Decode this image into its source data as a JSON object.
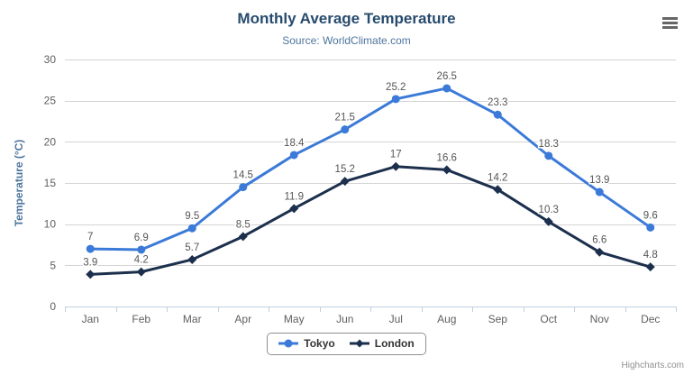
{
  "chart": {
    "title": "Monthly Average Temperature",
    "subtitle": "Source: WorldClimate.com",
    "credits": "Highcharts.com",
    "menu_icon": "hamburger-menu-icon"
  },
  "chart_data": {
    "type": "line",
    "title": "Monthly Average Temperature",
    "subtitle": "Source: WorldClimate.com",
    "categories": [
      "Jan",
      "Feb",
      "Mar",
      "Apr",
      "May",
      "Jun",
      "Jul",
      "Aug",
      "Sep",
      "Oct",
      "Nov",
      "Dec"
    ],
    "series": [
      {
        "name": "Tokyo",
        "color": "#3b7ad8",
        "marker": "circle",
        "values": [
          7,
          6.9,
          9.5,
          14.5,
          18.4,
          21.5,
          25.2,
          26.5,
          23.3,
          18.3,
          13.9,
          9.6
        ]
      },
      {
        "name": "London",
        "color": "#1c2f4d",
        "marker": "diamond",
        "values": [
          3.9,
          4.2,
          5.7,
          8.5,
          11.9,
          15.2,
          17,
          16.6,
          14.2,
          10.3,
          6.6,
          4.8
        ]
      }
    ],
    "xlabel": "",
    "ylabel": "Temperature (°C)",
    "ylim": [
      0,
      30
    ],
    "ytick_step": 5,
    "grid": true,
    "legend_position": "bottom",
    "data_labels": true
  },
  "colors": {
    "title": "#274b6d",
    "subtitle": "#4d759e",
    "axis_title": "#4d759e",
    "tick_label": "#606060",
    "grid_line": "#d4d4d4",
    "axis_line": "#c0d0e0",
    "data_label": "#555555",
    "legend_text": "#333333",
    "legend_border": "#909090",
    "credits": "#909090",
    "menu_icon": "#666666",
    "background": "#ffffff"
  }
}
